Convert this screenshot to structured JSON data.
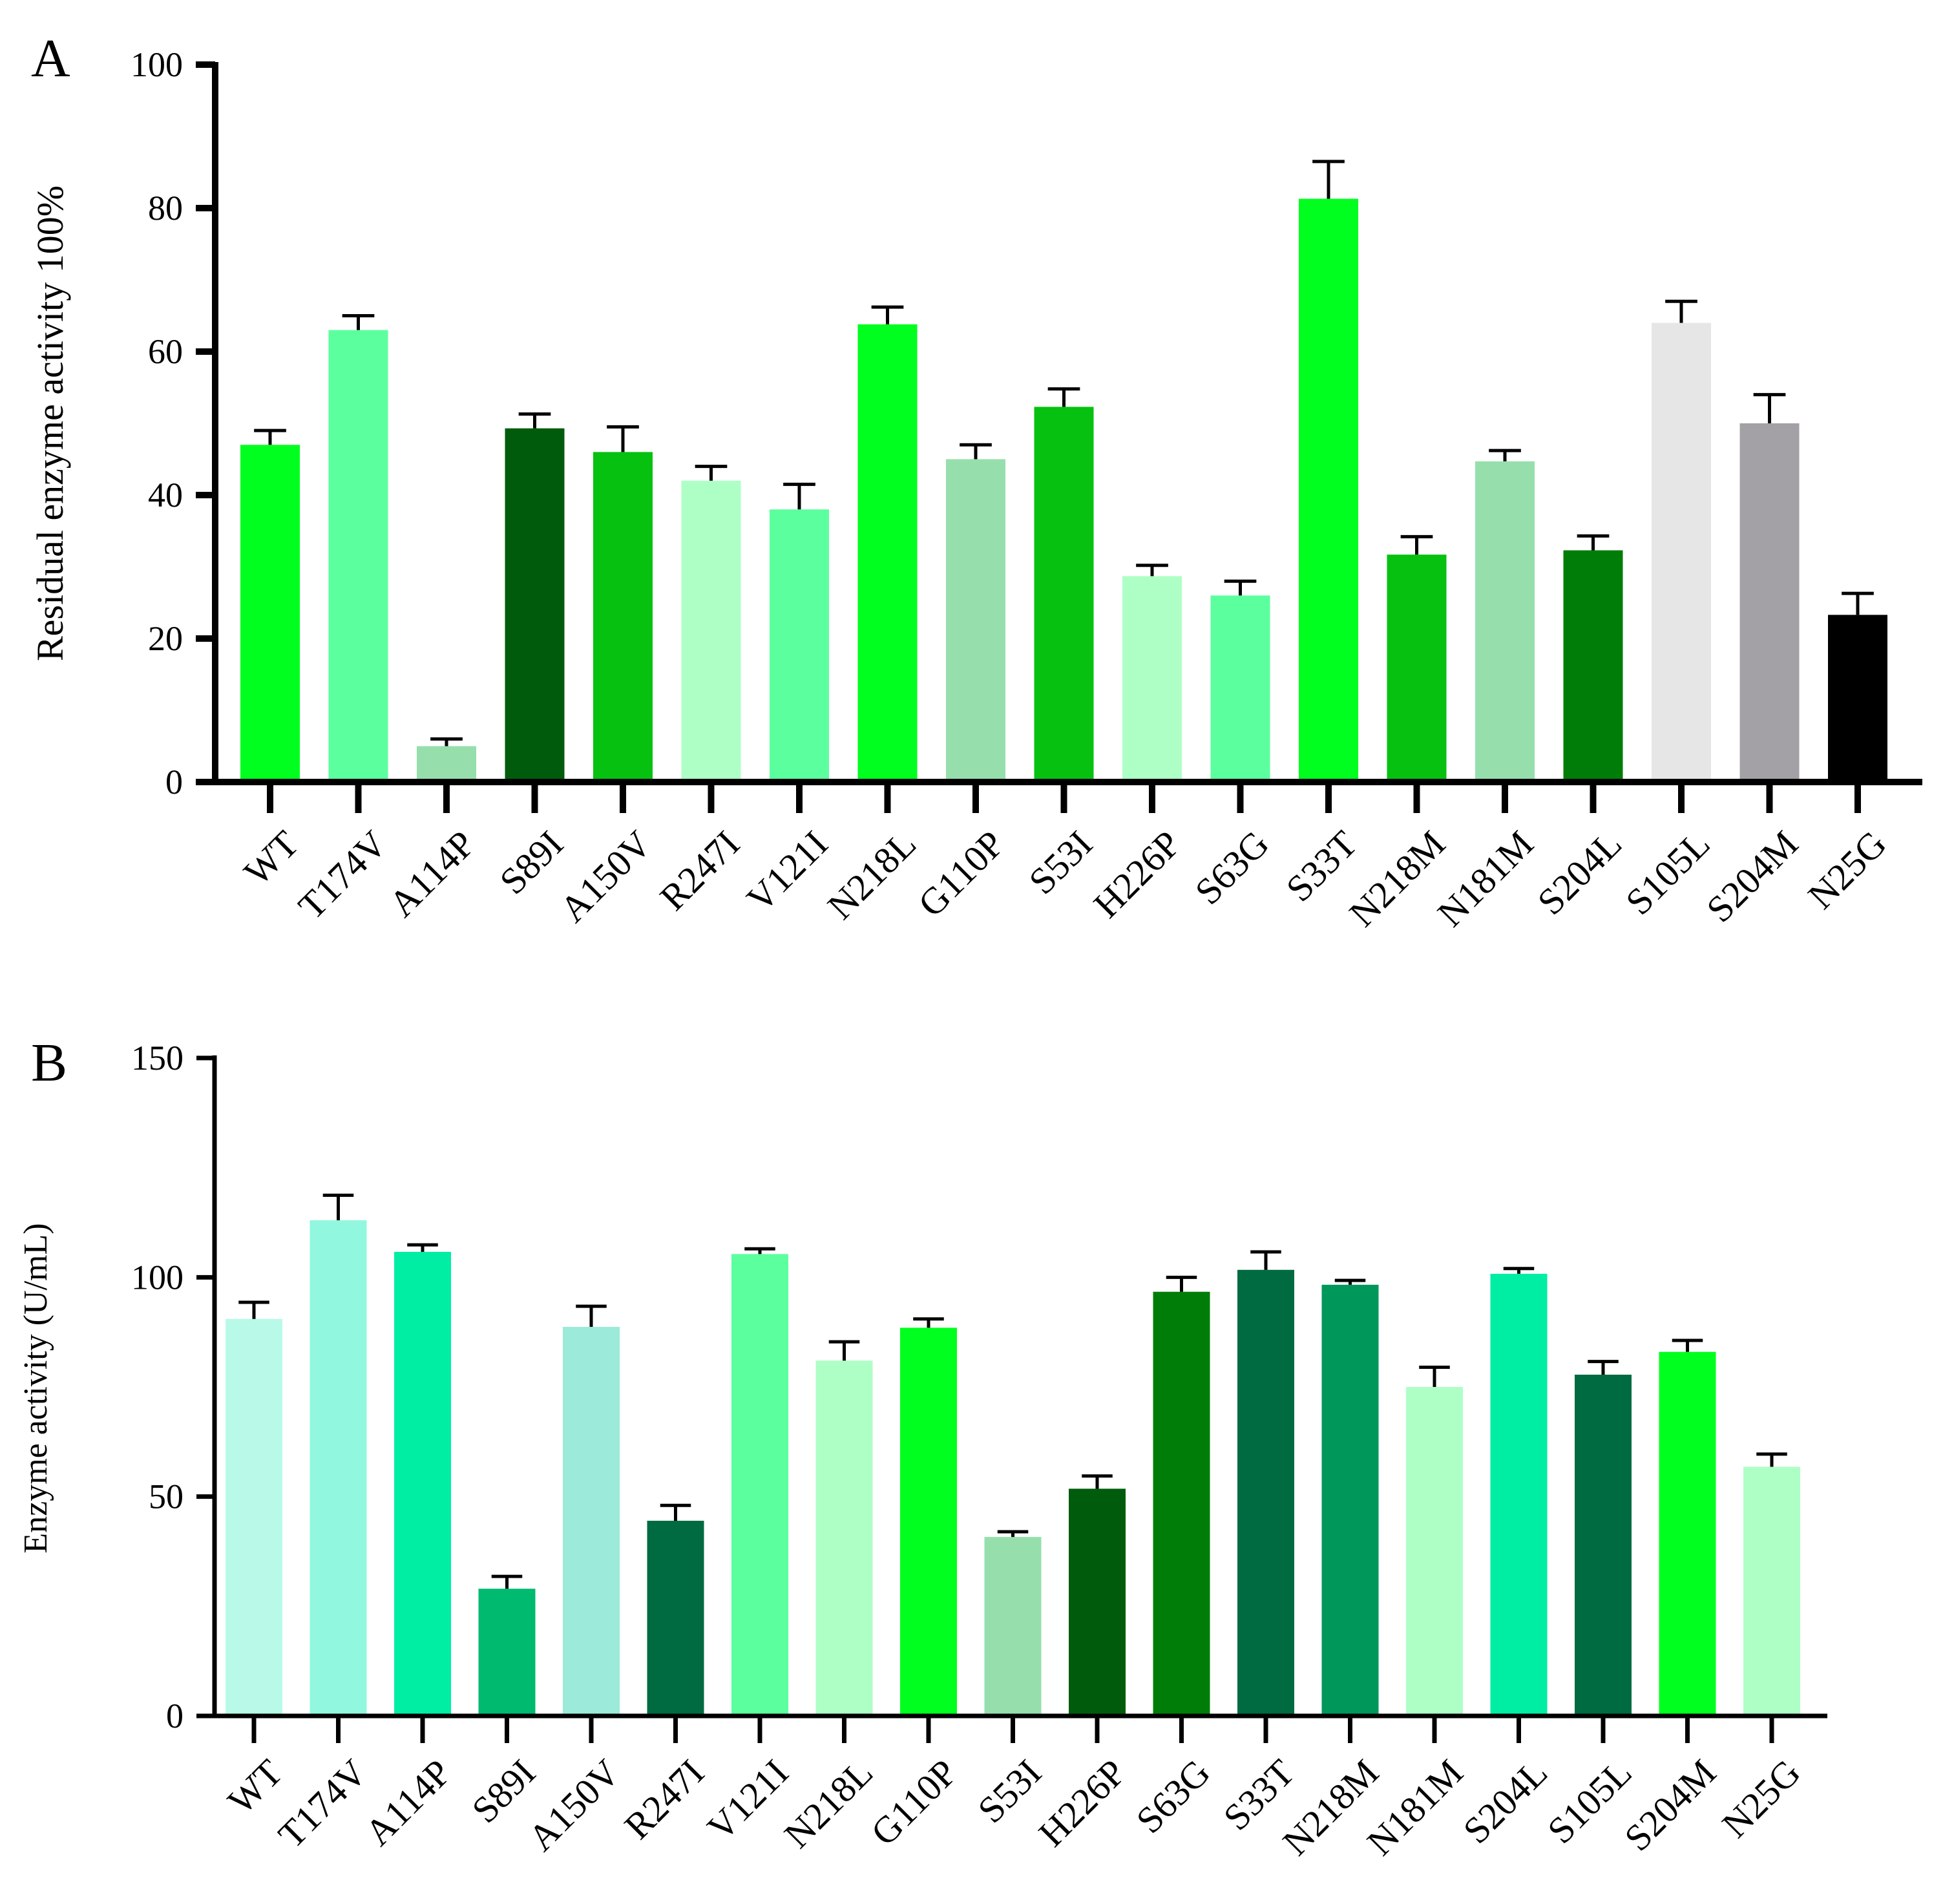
{
  "chart_data": [
    {
      "type": "bar",
      "panel_label": "A",
      "ylabel": "Residual enzyme activity 100%",
      "xlabel": "",
      "ylim": [
        0,
        100
      ],
      "yticks": [
        0,
        20,
        40,
        60,
        80,
        100
      ],
      "grid": false,
      "legend": "none",
      "error_bars": true,
      "categories": [
        "WT",
        "T174V",
        "A114P",
        "S89I",
        "A150V",
        "R247I",
        "V121I",
        "N218L",
        "G110P",
        "S53I",
        "H226P",
        "S63G",
        "S33T",
        "N218M",
        "N181M",
        "S204L",
        "S105L",
        "S204M",
        "N25G"
      ],
      "values": [
        47.0,
        63.0,
        5.0,
        49.3,
        46.0,
        42.0,
        38.0,
        63.8,
        45.0,
        52.3,
        28.7,
        26.0,
        81.3,
        31.7,
        44.7,
        32.3,
        64.0,
        50.0,
        23.3
      ],
      "errors": [
        2.0,
        2.0,
        1.0,
        2.0,
        3.5,
        2.0,
        3.5,
        2.4,
        2.0,
        2.5,
        1.5,
        2.0,
        5.2,
        2.5,
        1.5,
        2.0,
        3.0,
        4.0,
        3.0
      ],
      "colors": [
        "#00ff1e",
        "#5cff9e",
        "#96dfac",
        "#005c0c",
        "#06c10f",
        "#aeffc6",
        "#5cff9e",
        "#00ff1e",
        "#96dfac",
        "#06c10f",
        "#aeffc6",
        "#5cff9e",
        "#00ff1e",
        "#06c10f",
        "#96dfac",
        "#007d08",
        "#e6e6e6",
        "#a3a1a5",
        "#000000"
      ]
    },
    {
      "type": "bar",
      "panel_label": "B",
      "ylabel": "Enzyme activity (U/mL)",
      "xlabel": "",
      "ylim": [
        0,
        150
      ],
      "yticks": [
        0,
        50,
        100,
        150
      ],
      "grid": false,
      "legend": "none",
      "error_bars": true,
      "categories": [
        "WT",
        "T174V",
        "A114P",
        "S89I",
        "A150V",
        "R247I",
        "V121I",
        "N218L",
        "G110P",
        "S53I",
        "H226P",
        "S63G",
        "S33T",
        "N218M",
        "N181M",
        "S204L",
        "S105L",
        "S204M",
        "N25G"
      ],
      "values": [
        90.5,
        113.0,
        105.8,
        29.0,
        88.7,
        44.5,
        105.3,
        81.0,
        88.5,
        40.8,
        51.8,
        96.7,
        101.7,
        98.3,
        75.0,
        100.8,
        77.8,
        83.0,
        56.8
      ],
      "errors": [
        3.8,
        5.7,
        1.6,
        2.8,
        4.7,
        3.5,
        1.2,
        4.3,
        2.0,
        1.2,
        2.9,
        3.3,
        4.1,
        1.0,
        4.5,
        1.2,
        3.0,
        2.6,
        2.9
      ],
      "colors": [
        "#b8f9e8",
        "#91f7de",
        "#00eea4",
        "#00ba70",
        "#9ceada",
        "#006b41",
        "#5cff9e",
        "#aeffc6",
        "#00ff1e",
        "#96dfac",
        "#005c0c",
        "#007d08",
        "#006b41",
        "#00975a",
        "#aeffc6",
        "#00eea4",
        "#006b41",
        "#00ff1e",
        "#aeffc6"
      ]
    }
  ]
}
